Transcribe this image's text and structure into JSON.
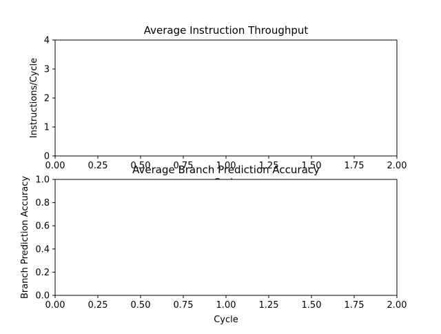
{
  "chart_data": [
    {
      "type": "line",
      "title": "Average Instruction Throughput",
      "xlabel": "Cycle",
      "ylabel": "Instructions/Cycle",
      "xlim": [
        0,
        2
      ],
      "ylim": [
        0,
        4
      ],
      "xticks": [
        "0.00",
        "0.25",
        "0.50",
        "0.75",
        "1.00",
        "1.25",
        "1.50",
        "1.75",
        "2.00"
      ],
      "yticks": [
        "0",
        "1",
        "2",
        "3",
        "4"
      ],
      "series": [],
      "grid": false
    },
    {
      "type": "line",
      "title": "Average Branch Prediction Accuracy",
      "xlabel": "Cycle",
      "ylabel": "Branch Prediction Accuracy",
      "xlim": [
        0,
        2
      ],
      "ylim": [
        0,
        1
      ],
      "xticks": [
        "0.00",
        "0.25",
        "0.50",
        "0.75",
        "1.00",
        "1.25",
        "1.50",
        "1.75",
        "2.00"
      ],
      "yticks": [
        "0.0",
        "0.2",
        "0.4",
        "0.6",
        "0.8",
        "1.0"
      ],
      "series": [],
      "grid": false
    }
  ]
}
